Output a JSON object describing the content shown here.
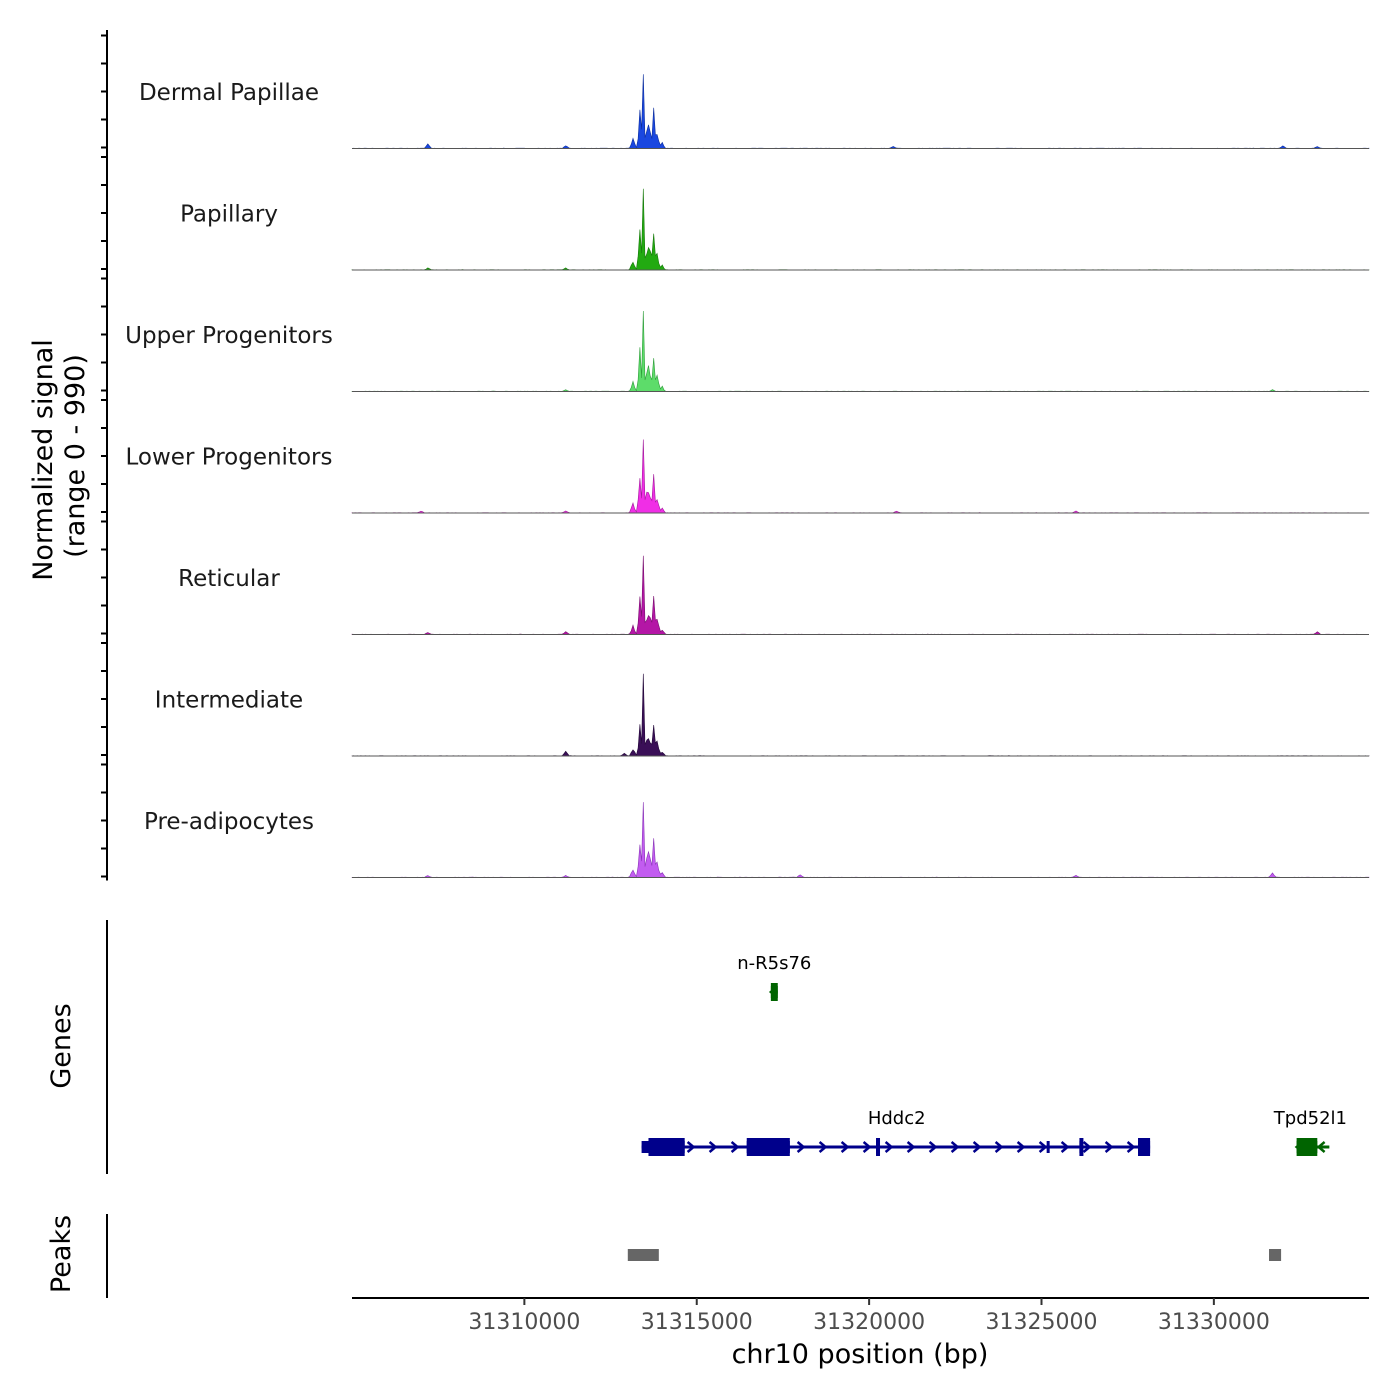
{
  "chart_data": {
    "type": "area",
    "chromosome": "chr10",
    "xlim": [
      31305000,
      31334500
    ],
    "xlabel": "chr10 position (bp)",
    "x_ticks": [
      31310000,
      31315000,
      31320000,
      31325000,
      31330000
    ],
    "x_tick_labels": [
      "31310000",
      "31315000",
      "31320000",
      "31325000",
      "31330000"
    ],
    "ylabel": "Normalized signal\n(range 0 - 990)",
    "ylim": [
      0,
      990
    ],
    "coverage": {
      "bin_bp": 50,
      "peak_region": [
        31313000,
        31314000
      ],
      "tracks": [
        {
          "name": "Dermal Papillae",
          "color": "#1a47e0",
          "outline": "#0d2f9e",
          "profile_scale": 0.95,
          "background_blips": [
            [
              31307200,
              0.05
            ],
            [
              31311200,
              0.03
            ],
            [
              31320700,
              0.02
            ],
            [
              31332000,
              0.03
            ],
            [
              31333000,
              0.02
            ]
          ]
        },
        {
          "name": "Papillary",
          "color": "#22aa11",
          "outline": "#177a0b",
          "profile_scale": 1.0,
          "background_blips": [
            [
              31307200,
              0.02
            ],
            [
              31311200,
              0.02
            ]
          ]
        },
        {
          "name": "Upper Progenitors",
          "color": "#5ddc6a",
          "outline": "#2f9e3b",
          "profile_scale": 0.95,
          "background_blips": [
            [
              31311200,
              0.02
            ],
            [
              31331700,
              0.02
            ]
          ]
        },
        {
          "name": "Lower Progenitors",
          "color": "#f02ee6",
          "outline": "#a31a9c",
          "profile_scale": 0.98,
          "background_blips": [
            [
              31307000,
              0.02
            ],
            [
              31311200,
              0.02
            ],
            [
              31320800,
              0.02
            ],
            [
              31326000,
              0.02
            ]
          ]
        },
        {
          "name": "Reticular",
          "color": "#b416a6",
          "outline": "#7a0e70",
          "profile_scale": 0.92,
          "background_blips": [
            [
              31307200,
              0.02
            ],
            [
              31311200,
              0.03
            ],
            [
              31333000,
              0.03
            ]
          ]
        },
        {
          "name": "Intermediate",
          "color": "#3a0f57",
          "outline": "#24093a",
          "profile_scale": 0.82,
          "background_blips": [
            [
              31311200,
              0.05
            ],
            [
              31312900,
              0.03
            ]
          ]
        },
        {
          "name": "Pre-adipocytes",
          "color": "#c25cf0",
          "outline": "#8a35b8",
          "profile_scale": 1.0,
          "background_blips": [
            [
              31307200,
              0.02
            ],
            [
              31311200,
              0.02
            ],
            [
              31318000,
              0.03
            ],
            [
              31326000,
              0.02
            ],
            [
              31331700,
              0.05
            ]
          ]
        }
      ]
    },
    "genes_panel": {
      "label": "Genes",
      "genes": [
        {
          "name": "n-R5s76",
          "start": 31317150,
          "end": 31317350,
          "strand": "-",
          "color": "#006400",
          "row": 0,
          "exons": [
            [
              31317150,
              31317350
            ]
          ],
          "thick_exons": [
            [
              31317150,
              31317350
            ]
          ]
        },
        {
          "name": "Hddc2",
          "start": 31313400,
          "end": 31328150,
          "strand": "+",
          "color": "#00008b",
          "row": 1,
          "exons": [
            [
              31313400,
              31314650
            ],
            [
              31316450,
              31317200
            ],
            [
              31317200,
              31317700
            ],
            [
              31320200,
              31320300
            ],
            [
              31325150,
              31325200
            ],
            [
              31326100,
              31326200
            ],
            [
              31327800,
              31328150
            ]
          ],
          "thick_exons": [
            [
              31313600,
              31314650
            ],
            [
              31316450,
              31317700
            ],
            [
              31320200,
              31320300
            ],
            [
              31326100,
              31326200
            ],
            [
              31327800,
              31328150
            ]
          ]
        },
        {
          "name": "Tpd52l1",
          "start": 31332400,
          "end": 31333350,
          "strand": "-",
          "color": "#006400",
          "row": 1,
          "exons": [
            [
              31332400,
              31333000
            ]
          ],
          "thick_exons": [
            [
              31332400,
              31333000
            ]
          ]
        }
      ]
    },
    "peaks_panel": {
      "label": "Peaks",
      "color": "#666666",
      "peaks": [
        [
          31313000,
          31313900
        ],
        [
          31331600,
          31331950
        ]
      ]
    }
  }
}
